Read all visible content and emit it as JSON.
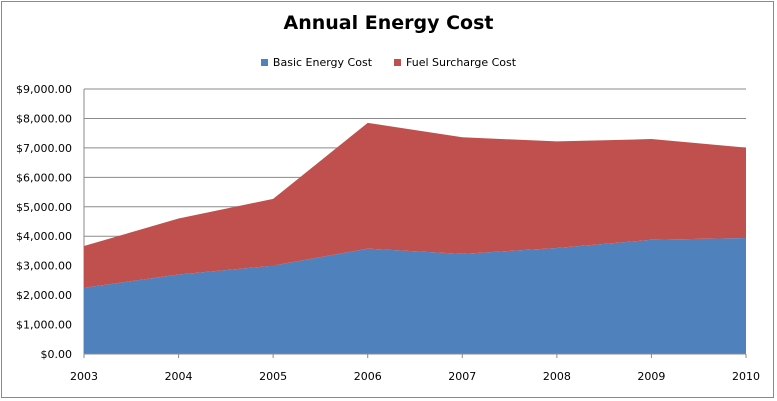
{
  "chart_data": {
    "type": "area",
    "stacked": true,
    "title": "Annual Energy Cost",
    "categories": [
      "2003",
      "2004",
      "2005",
      "2006",
      "2007",
      "2008",
      "2009",
      "2010"
    ],
    "series": [
      {
        "name": "Basic Energy Cost",
        "color": "#4f81bd",
        "values": [
          2250,
          2700,
          3000,
          3580,
          3400,
          3600,
          3880,
          3940
        ]
      },
      {
        "name": "Fuel Surcharge Cost",
        "color": "#c0504d",
        "values": [
          1420,
          1900,
          2270,
          4270,
          3960,
          3620,
          3420,
          3070
        ]
      }
    ],
    "ylim": [
      0,
      9000
    ],
    "yticks": [
      {
        "value": 0,
        "label": "$0.00"
      },
      {
        "value": 1000,
        "label": "$1,000.00"
      },
      {
        "value": 2000,
        "label": "$2,000.00"
      },
      {
        "value": 3000,
        "label": "$3,000.00"
      },
      {
        "value": 4000,
        "label": "$4,000.00"
      },
      {
        "value": 5000,
        "label": "$5,000.00"
      },
      {
        "value": 6000,
        "label": "$6,000.00"
      },
      {
        "value": 7000,
        "label": "$7,000.00"
      },
      {
        "value": 8000,
        "label": "$8,000.00"
      },
      {
        "value": 9000,
        "label": "$9,000.00"
      }
    ],
    "grid": true,
    "legend_position": "top"
  }
}
